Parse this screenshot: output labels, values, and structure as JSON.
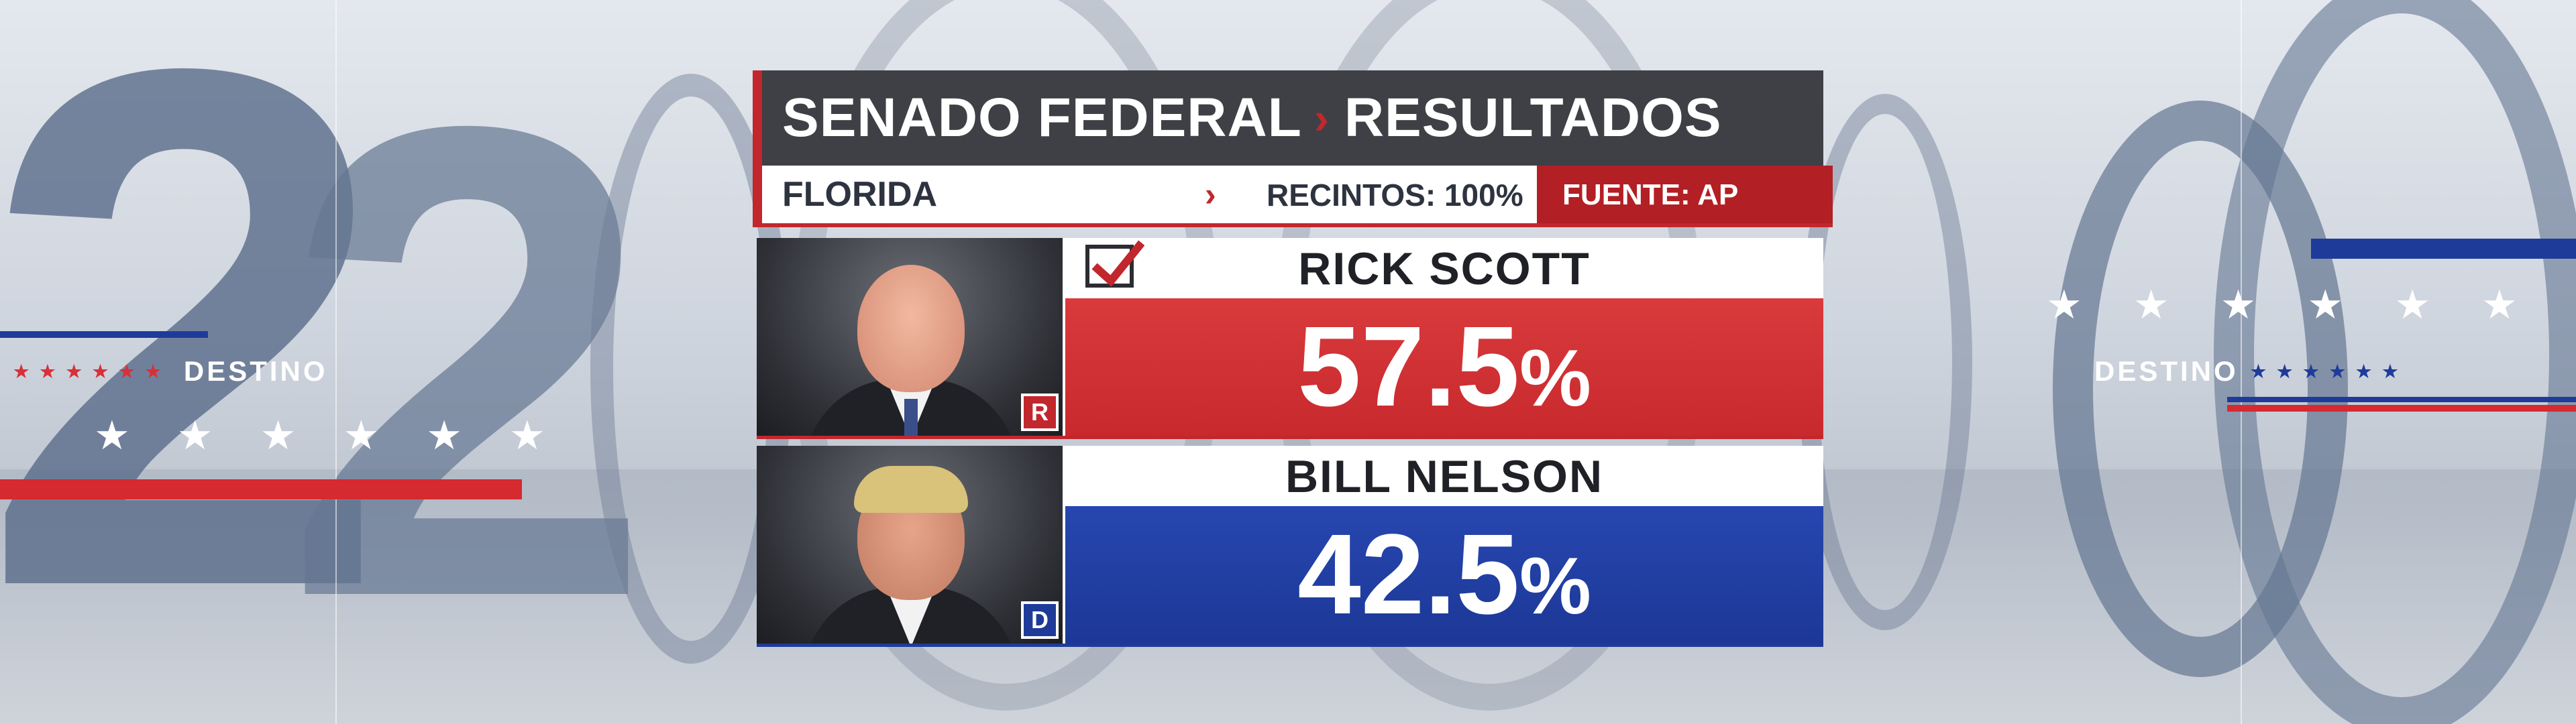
{
  "header": {
    "race": "SENADO FEDERAL",
    "separator": "›",
    "section": "RESULTADOS"
  },
  "subheader": {
    "state": "FLORIDA",
    "separator": "›",
    "precincts_label": "RECINTOS:",
    "precincts_value": "100%",
    "source_label": "FUENTE:",
    "source_value": "AP"
  },
  "candidates": [
    {
      "name": "RICK SCOTT",
      "party": "R",
      "percent": "57.5",
      "percent_sign": "%",
      "winner": true,
      "color": "#c8292d"
    },
    {
      "name": "BILL NELSON",
      "party": "D",
      "percent": "42.5",
      "percent_sign": "%",
      "winner": false,
      "color": "#1f3b9a"
    }
  ],
  "background": {
    "left_tag": "DESTINO",
    "right_tag": "DESTINO",
    "big_year_digits": [
      "2",
      "0",
      "2",
      "0"
    ],
    "stars": "★"
  },
  "colors": {
    "gop_red": "#c1272d",
    "dem_blue": "#1f3b9a",
    "header_dark": "#3e4045"
  }
}
